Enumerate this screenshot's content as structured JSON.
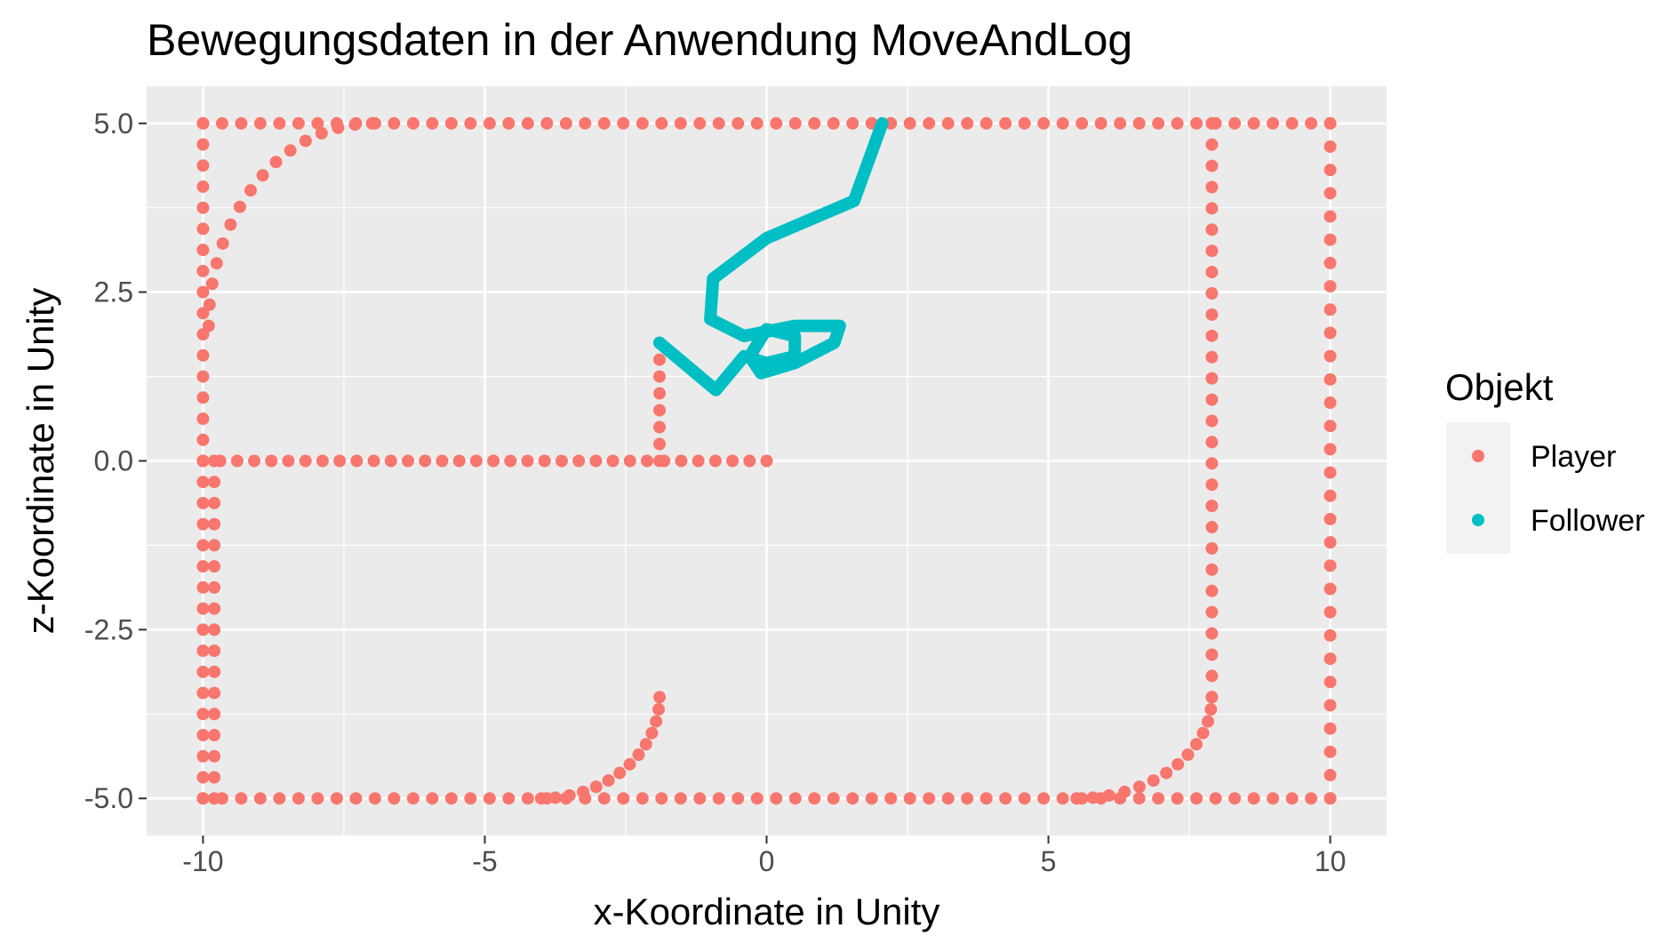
{
  "chart_data": {
    "type": "scatter",
    "title": "Bewegungsdaten in der Anwendung MoveAndLog",
    "xlabel": "x-Koordinate in Unity",
    "ylabel": "z-Koordinate in Unity",
    "xlim": [
      -11.0,
      11.0
    ],
    "ylim": [
      -5.55,
      5.55
    ],
    "x_ticks": [
      -10,
      -5,
      0,
      5,
      10
    ],
    "x_tick_labels": [
      "-10",
      "-5",
      "0",
      "5",
      "10"
    ],
    "y_ticks": [
      -5.0,
      -2.5,
      0.0,
      2.5,
      5.0
    ],
    "y_tick_labels": [
      "-5.0",
      "-2.5",
      "0.0",
      "2.5",
      "5.0"
    ],
    "grid": true,
    "legend": {
      "title": "Objekt",
      "position": "right",
      "entries": [
        {
          "label": "Player",
          "color": "#F8766D"
        },
        {
          "label": "Follower",
          "color": "#00BFC4"
        }
      ]
    },
    "series": [
      {
        "name": "Player",
        "color": "#F8766D",
        "mark": "point",
        "paths": [
          {
            "from": [
              0.0,
              0.0
            ],
            "to": [
              -10.0,
              0.0
            ],
            "n": 34
          },
          {
            "from": [
              -10.0,
              0.0
            ],
            "to": [
              -10.0,
              5.0
            ],
            "n": 17
          },
          {
            "from": [
              -10.0,
              5.0
            ],
            "to": [
              10.0,
              5.0
            ],
            "n": 60
          },
          {
            "from": [
              10.0,
              5.0
            ],
            "to": [
              10.0,
              -5.0
            ],
            "n": 30
          },
          {
            "from": [
              10.0,
              -5.0
            ],
            "to": [
              -10.0,
              -5.0
            ],
            "n": 60
          },
          {
            "from": [
              -10.0,
              -5.0
            ],
            "to": [
              -10.0,
              0.0
            ],
            "n": 17
          },
          {
            "from": [
              -9.8,
              0.0
            ],
            "to": [
              -9.8,
              -5.0
            ],
            "n": 17
          },
          {
            "from": [
              -1.9,
              0.0
            ],
            "to": [
              -1.9,
              1.75
            ],
            "n": 8
          },
          {
            "from": [
              7.9,
              5.0
            ],
            "to": [
              7.9,
              -3.5
            ],
            "n": 28
          }
        ],
        "arcs": [
          {
            "center": [
              -7.0,
              2.0
            ],
            "radii": [
              2.9,
              3.0
            ],
            "angles": [
              90,
              180
            ],
            "n": 16
          },
          {
            "center": [
              -4.0,
              -3.5
            ],
            "radii": [
              2.1,
              1.5
            ],
            "angles": [
              270,
              360
            ],
            "n": 14
          },
          {
            "center": [
              5.5,
              -3.5
            ],
            "radii": [
              2.4,
              1.5
            ],
            "angles": [
              270,
              360
            ],
            "n": 14
          }
        ]
      },
      {
        "name": "Follower",
        "color": "#00BFC4",
        "mark": "path",
        "points": [
          [
            2.05,
            5.0
          ],
          [
            1.55,
            3.85
          ],
          [
            0.0,
            3.3
          ],
          [
            -0.95,
            2.7
          ],
          [
            -1.0,
            2.1
          ],
          [
            -0.4,
            1.85
          ],
          [
            0.5,
            2.0
          ],
          [
            1.3,
            2.0
          ],
          [
            1.2,
            1.75
          ],
          [
            0.5,
            1.45
          ],
          [
            -0.1,
            1.3
          ],
          [
            -0.3,
            1.55
          ],
          [
            0.0,
            1.95
          ],
          [
            0.5,
            1.85
          ],
          [
            0.5,
            1.55
          ],
          [
            0.0,
            1.45
          ],
          [
            -0.4,
            1.55
          ],
          [
            -0.9,
            1.05
          ],
          [
            -1.9,
            1.75
          ]
        ]
      }
    ]
  }
}
